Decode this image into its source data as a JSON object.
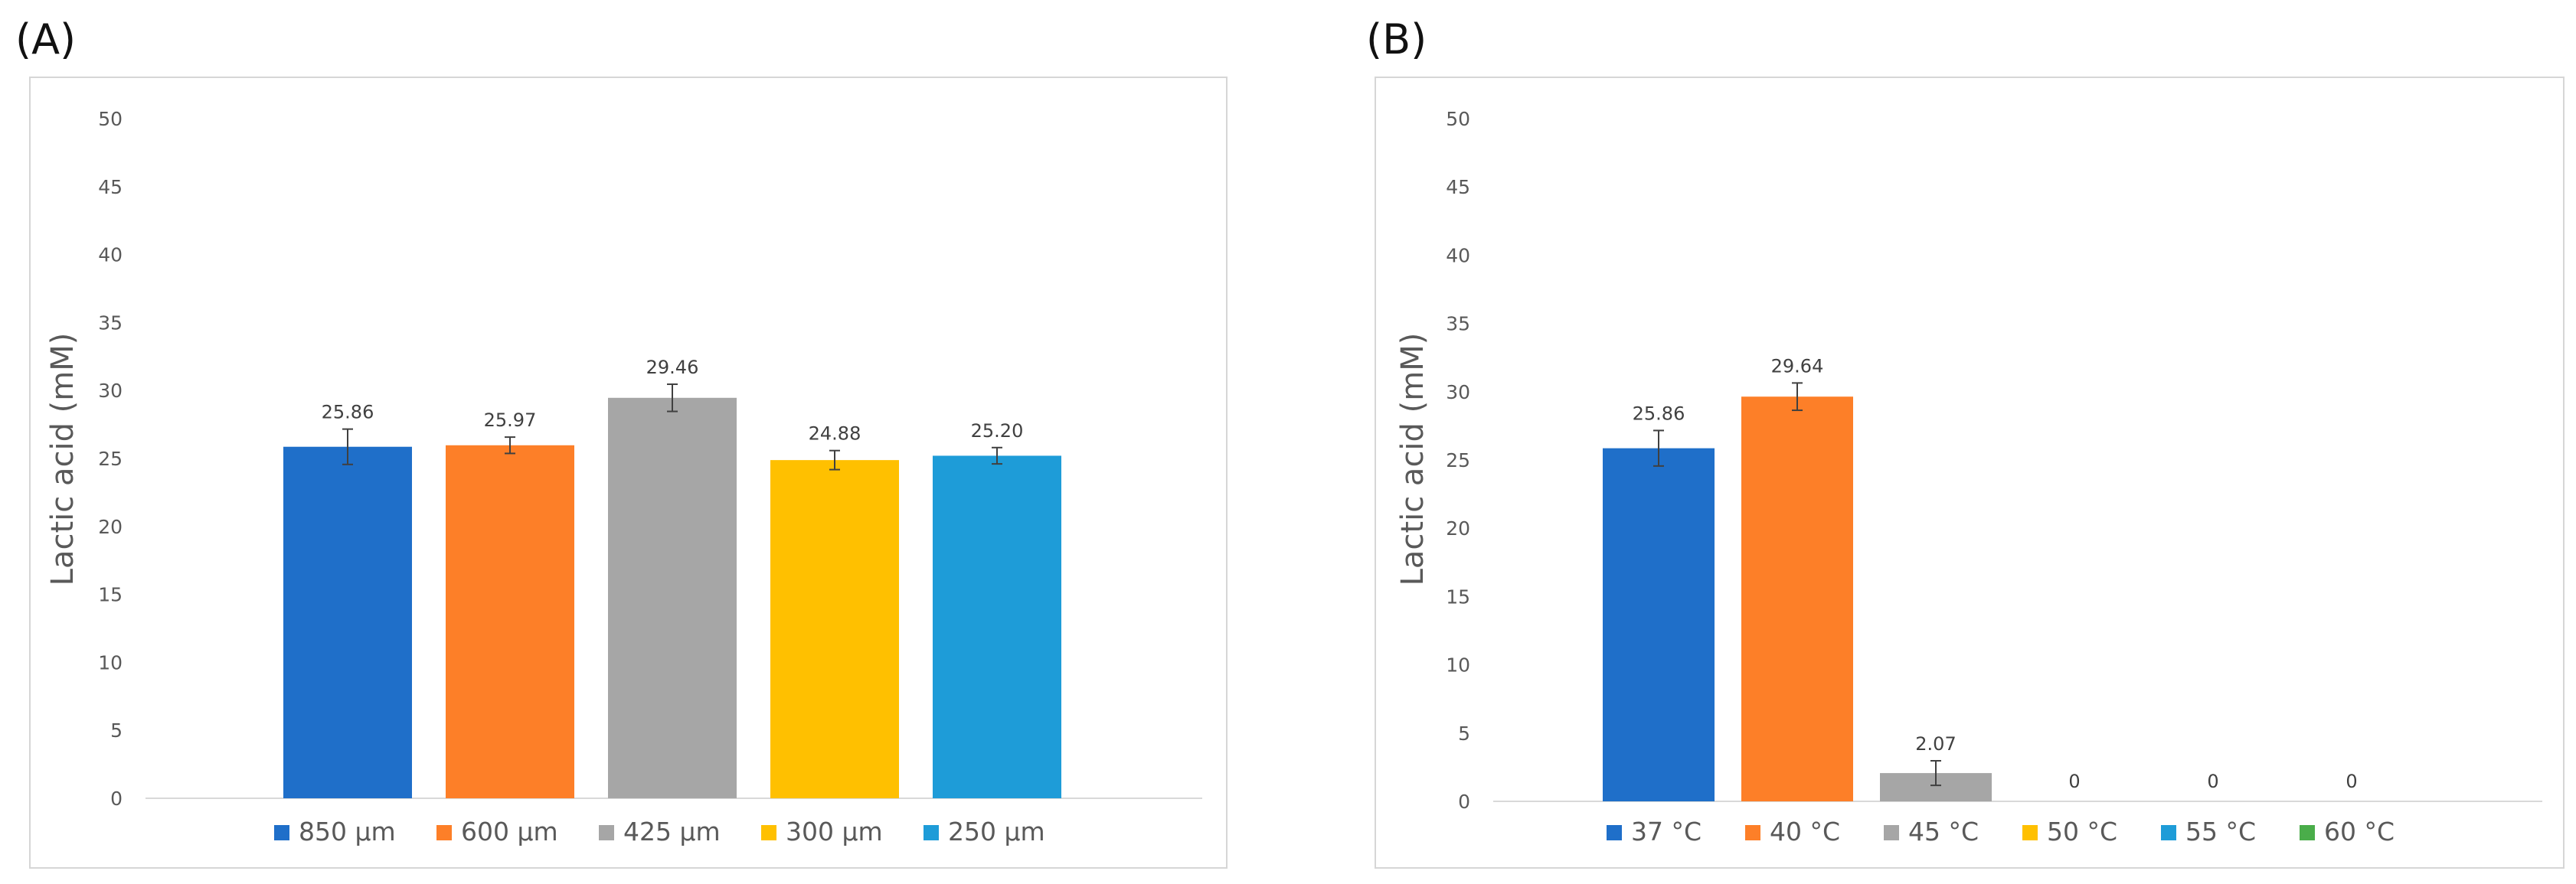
{
  "panels": [
    {
      "label": "(A)"
    },
    {
      "label": "(B)"
    }
  ],
  "colors": {
    "blue": "#1f6fc9",
    "orange": "#fd7f28",
    "gray": "#a6a6a6",
    "yellow": "#ffc000",
    "lightblue": "#1e9cd8",
    "green": "#4aad4a"
  },
  "chart_data": [
    {
      "type": "bar",
      "title": "",
      "xlabel": "",
      "ylabel": "Lactic acid (mM)",
      "ylim": [
        0,
        50
      ],
      "yticks": [
        "0",
        "5",
        "10",
        "15",
        "20",
        "25",
        "30",
        "35",
        "40",
        "45",
        "50"
      ],
      "categories": [
        "850 µm",
        "600 µm",
        "425 µm",
        "300 µm",
        "250 µm"
      ],
      "values": [
        25.86,
        25.97,
        29.46,
        24.88,
        25.2
      ],
      "value_labels": [
        "25.86",
        "25.97",
        "29.46",
        "24.88",
        "25.20"
      ],
      "errors": [
        1.3,
        0.6,
        1.0,
        0.7,
        0.6
      ],
      "colors": [
        "#1f6fc9",
        "#fd7f28",
        "#a6a6a6",
        "#ffc000",
        "#1e9cd8"
      ],
      "legend": [
        "850 µm",
        "600 µm",
        "425 µm",
        "300 µm",
        "250 µm"
      ],
      "legend_position": "bottom",
      "grid": false
    },
    {
      "type": "bar",
      "title": "",
      "xlabel": "",
      "ylabel": "Lactic acid (mM)",
      "ylim": [
        0,
        50
      ],
      "yticks": [
        "0",
        "5",
        "10",
        "15",
        "20",
        "25",
        "30",
        "35",
        "40",
        "45",
        "50"
      ],
      "categories": [
        "37 °C",
        "40 °C",
        "45 °C",
        "50 °C",
        "55 °C",
        "60 °C"
      ],
      "values": [
        25.86,
        29.64,
        2.07,
        0,
        0,
        0
      ],
      "value_labels": [
        "25.86",
        "29.64",
        "2.07",
        "0",
        "0",
        "0"
      ],
      "errors": [
        1.3,
        1.0,
        0.9,
        0,
        0,
        0
      ],
      "colors": [
        "#1f6fc9",
        "#fd7f28",
        "#a6a6a6",
        "#ffc000",
        "#1e9cd8",
        "#4aad4a"
      ],
      "legend": [
        "37 °C",
        "40 °C",
        "45 °C",
        "50 °C",
        "55 °C",
        "60 °C"
      ],
      "legend_position": "bottom",
      "grid": false
    }
  ]
}
